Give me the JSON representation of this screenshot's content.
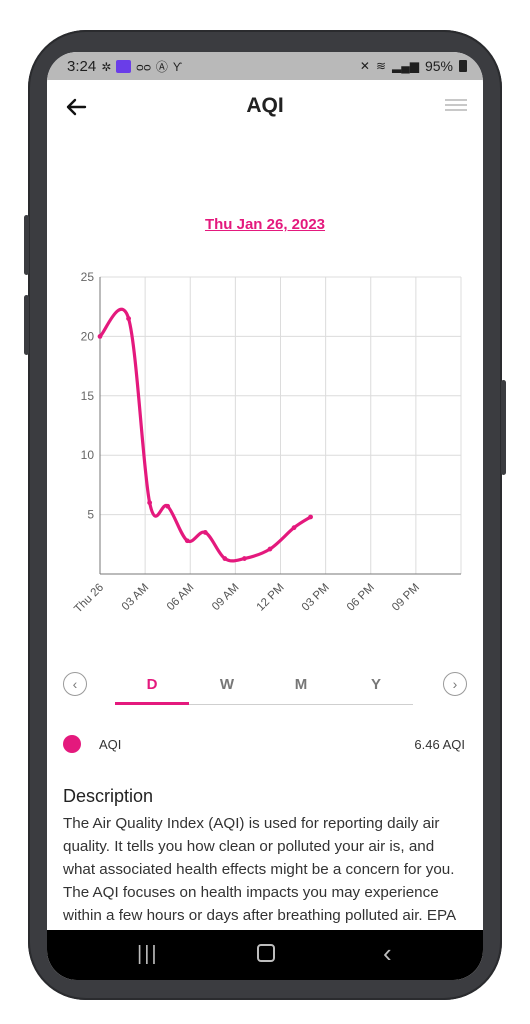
{
  "status_bar": {
    "time": "3:24",
    "battery": "95%"
  },
  "header": {
    "title": "AQI"
  },
  "date_label": "Thu Jan 26, 2023",
  "chart_data": {
    "type": "line",
    "title": "",
    "xlabel": "",
    "ylabel": "",
    "x_tick_labels": [
      "Thu 26",
      "03 AM",
      "06 AM",
      "09 AM",
      "12 PM",
      "03 PM",
      "06 PM",
      "09 PM"
    ],
    "x_range_hours": [
      0,
      24
    ],
    "y_ticks": [
      25,
      20,
      15,
      10,
      5
    ],
    "ylim": [
      0,
      25
    ],
    "grid": true,
    "color": "#e4197d",
    "series": [
      {
        "name": "AQI",
        "x": [
          0,
          1.9,
          3.3,
          4.5,
          5.8,
          7.0,
          8.3,
          9.6,
          11.3,
          12.9,
          14.0
        ],
        "y": [
          20,
          21.5,
          6.0,
          5.7,
          2.8,
          3.5,
          1.3,
          1.3,
          2.1,
          3.9,
          4.8
        ]
      }
    ]
  },
  "range_tabs": [
    {
      "label": "D",
      "active": true
    },
    {
      "label": "W",
      "active": false
    },
    {
      "label": "M",
      "active": false
    },
    {
      "label": "Y",
      "active": false
    }
  ],
  "legend": {
    "label": "AQI",
    "value": "6.46 AQI"
  },
  "description": {
    "heading": "Description",
    "body": "The Air Quality Index (AQI) is used for reporting daily air quality. It tells you how clean or polluted your air is, and what associated health effects might be a concern for you. The AQI focuses on health impacts you may experience within a few hours or days after breathing polluted air. EPA calculates the AQI for five"
  },
  "bottom_nav": [
    "book-icon",
    "bell-icon",
    "activity-icon",
    "more-icon"
  ]
}
